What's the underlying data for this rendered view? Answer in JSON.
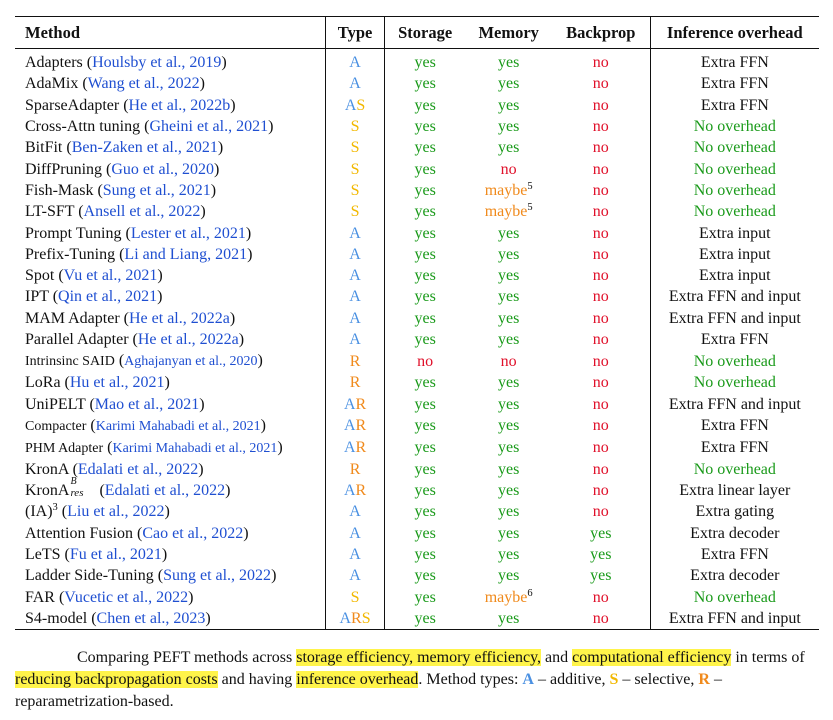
{
  "headers": {
    "method": "Method",
    "type": "Type",
    "storage": "Storage",
    "memory": "Memory",
    "backprop": "Backprop",
    "inference": "Inference overhead"
  },
  "rows": [
    {
      "name": "Adapters",
      "cite": "Houlsby et al., 2019",
      "type": "A",
      "storage": "yes",
      "memory": "yes",
      "backprop": "no",
      "inference": "Extra FFN"
    },
    {
      "name": "AdaMix",
      "cite": "Wang et al., 2022",
      "type": "A",
      "storage": "yes",
      "memory": "yes",
      "backprop": "no",
      "inference": "Extra FFN"
    },
    {
      "name": "SparseAdapter",
      "cite": "He et al., 2022b",
      "type": "AS",
      "storage": "yes",
      "memory": "yes",
      "backprop": "no",
      "inference": "Extra FFN"
    },
    {
      "name": "Cross-Attn tuning",
      "cite": "Gheini et al., 2021",
      "type": "S",
      "storage": "yes",
      "memory": "yes",
      "backprop": "no",
      "inference": "No overhead"
    },
    {
      "name": "BitFit",
      "cite": "Ben-Zaken et al., 2021",
      "type": "S",
      "storage": "yes",
      "memory": "yes",
      "backprop": "no",
      "inference": "No overhead"
    },
    {
      "name": "DiffPruning",
      "cite": "Guo et al., 2020",
      "type": "S",
      "storage": "yes",
      "memory": "no",
      "backprop": "no",
      "inference": "No overhead"
    },
    {
      "name": "Fish-Mask",
      "cite": "Sung et al., 2021",
      "type": "S",
      "storage": "yes",
      "memory": "maybe",
      "memory_note": "5",
      "backprop": "no",
      "inference": "No overhead"
    },
    {
      "name": "LT-SFT",
      "cite": "Ansell et al., 2022",
      "type": "S",
      "storage": "yes",
      "memory": "maybe",
      "memory_note": "5",
      "backprop": "no",
      "inference": "No overhead"
    },
    {
      "name": "Prompt Tuning",
      "cite": "Lester et al., 2021",
      "type": "A",
      "storage": "yes",
      "memory": "yes",
      "backprop": "no",
      "inference": "Extra input"
    },
    {
      "name": "Prefix-Tuning",
      "cite": "Li and Liang, 2021",
      "type": "A",
      "storage": "yes",
      "memory": "yes",
      "backprop": "no",
      "inference": "Extra input"
    },
    {
      "name": "Spot",
      "cite": "Vu et al., 2021",
      "type": "A",
      "storage": "yes",
      "memory": "yes",
      "backprop": "no",
      "inference": "Extra input"
    },
    {
      "name": "IPT",
      "cite": "Qin et al., 2021",
      "type": "A",
      "storage": "yes",
      "memory": "yes",
      "backprop": "no",
      "inference": "Extra FFN and input"
    },
    {
      "name": "MAM Adapter",
      "cite": "He et al., 2022a",
      "type": "A",
      "storage": "yes",
      "memory": "yes",
      "backprop": "no",
      "inference": "Extra FFN and input"
    },
    {
      "name": "Parallel Adapter",
      "cite": "He et al., 2022a",
      "type": "A",
      "storage": "yes",
      "memory": "yes",
      "backprop": "no",
      "inference": "Extra FFN"
    },
    {
      "name": "Intrinsinc SAID",
      "cite": "Aghajanyan et al., 2020",
      "small": true,
      "type": "R",
      "storage": "no",
      "memory": "no",
      "backprop": "no",
      "inference": "No overhead"
    },
    {
      "name": "LoRa",
      "cite": "Hu et al., 2021",
      "type": "R",
      "storage": "yes",
      "memory": "yes",
      "backprop": "no",
      "inference": "No overhead"
    },
    {
      "name": "UniPELT",
      "cite": "Mao et al., 2021",
      "type": "AR",
      "storage": "yes",
      "memory": "yes",
      "backprop": "no",
      "inference": "Extra FFN and input"
    },
    {
      "name": "Compacter",
      "cite": "Karimi Mahabadi et al., 2021",
      "small": true,
      "type": "AR",
      "storage": "yes",
      "memory": "yes",
      "backprop": "no",
      "inference": "Extra FFN"
    },
    {
      "name": "PHM Adapter",
      "cite": "Karimi Mahabadi et al., 2021",
      "small": true,
      "type": "AR",
      "storage": "yes",
      "memory": "yes",
      "backprop": "no",
      "inference": "Extra FFN"
    },
    {
      "name": "KronA",
      "cite": "Edalati et al., 2022",
      "type": "R",
      "storage": "yes",
      "memory": "yes",
      "backprop": "no",
      "inference": "No overhead"
    },
    {
      "name": "KronA",
      "name_sup": "B",
      "name_sub": "res",
      "cite": "Edalati et al., 2022",
      "type": "AR",
      "storage": "yes",
      "memory": "yes",
      "backprop": "no",
      "inference": "Extra linear layer"
    },
    {
      "name": "(IA)",
      "name_note": "3",
      "cite": "Liu et al., 2022",
      "type": "A",
      "storage": "yes",
      "memory": "yes",
      "backprop": "no",
      "inference": "Extra gating"
    },
    {
      "name": "Attention Fusion",
      "cite": "Cao et al., 2022",
      "type": "A",
      "storage": "yes",
      "memory": "yes",
      "backprop": "yes",
      "inference": "Extra decoder"
    },
    {
      "name": "LeTS",
      "cite": "Fu et al., 2021",
      "type": "A",
      "storage": "yes",
      "memory": "yes",
      "backprop": "yes",
      "inference": "Extra FFN"
    },
    {
      "name": "Ladder Side-Tuning",
      "cite": "Sung et al., 2022",
      "type": "A",
      "storage": "yes",
      "memory": "yes",
      "backprop": "yes",
      "inference": "Extra decoder"
    },
    {
      "name": "FAR",
      "cite": "Vucetic et al., 2022",
      "type": "S",
      "storage": "yes",
      "memory": "maybe",
      "memory_note": "6",
      "backprop": "no",
      "inference": "No overhead"
    },
    {
      "name": "S4-model",
      "cite": "Chen et al., 2023",
      "type": "ARS",
      "storage": "yes",
      "memory": "yes",
      "backprop": "no",
      "inference": "Extra FFN and input"
    }
  ],
  "caption": {
    "t1": "Comparing PEFT methods across ",
    "h1": "storage efficiency, memory efficiency,",
    "t2": " and ",
    "h2": "computational efficiency",
    "t3": " in terms of ",
    "h3": "reducing backpropagation costs",
    "t4": " and having ",
    "h4": "inference overhead",
    "t5": ". Method types: ",
    "ka": "A",
    "ta": " – additive, ",
    "ks": "S",
    "ts": " – selective,",
    "kr": "R",
    "tr": " – reparametrization-based."
  },
  "colors": {
    "yes": "#1a9a1a",
    "no": "#e0102a",
    "maybe": "#f08a1c",
    "type_A": "#4a90e2",
    "type_S": "#f2b800",
    "type_R": "#f08a1c",
    "citation": "#1f4fd1",
    "highlight": "#fff44a"
  }
}
